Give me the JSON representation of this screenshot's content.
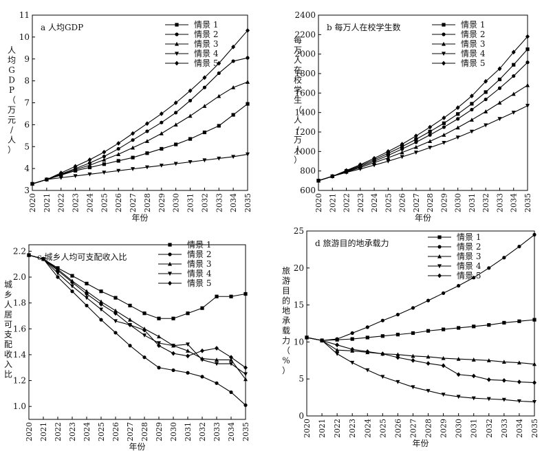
{
  "chart_data": [
    {
      "type": "line",
      "panel_label": "a  人均GDP",
      "ylabel": "人均GDP（万元/人）",
      "xlabel": "年份",
      "x": [
        2020,
        2021,
        2022,
        2023,
        2024,
        2025,
        2026,
        2027,
        2028,
        2029,
        2030,
        2031,
        2032,
        2033,
        2034,
        2035
      ],
      "xlim": [
        2020,
        2035
      ],
      "ylim": [
        3,
        11
      ],
      "yticks": [
        3,
        4,
        5,
        6,
        7,
        8,
        9,
        10,
        11
      ],
      "legend_position": "top-right",
      "series": [
        {
          "name": "情景 1",
          "marker": "square",
          "values": [
            3.3,
            3.5,
            3.7,
            3.9,
            4.05,
            4.2,
            4.35,
            4.5,
            4.7,
            4.9,
            5.1,
            5.35,
            5.65,
            5.95,
            6.45,
            6.95
          ]
        },
        {
          "name": "情景 2",
          "marker": "circle",
          "values": [
            3.3,
            3.5,
            3.75,
            4.0,
            4.25,
            4.55,
            4.9,
            5.3,
            5.7,
            6.1,
            6.55,
            7.1,
            7.7,
            8.35,
            8.9,
            9.05
          ]
        },
        {
          "name": "情景 3",
          "marker": "triangle",
          "values": [
            3.3,
            3.5,
            3.72,
            3.95,
            4.15,
            4.4,
            4.65,
            4.95,
            5.25,
            5.6,
            6.0,
            6.4,
            6.85,
            7.3,
            7.7,
            7.95
          ]
        },
        {
          "name": "情景 4",
          "marker": "triangle-down",
          "values": [
            3.3,
            3.5,
            3.58,
            3.66,
            3.74,
            3.82,
            3.9,
            3.98,
            4.06,
            4.14,
            4.22,
            4.3,
            4.38,
            4.46,
            4.54,
            4.65
          ]
        },
        {
          "name": "情景 5",
          "marker": "diamond",
          "values": [
            3.3,
            3.5,
            3.8,
            4.1,
            4.4,
            4.75,
            5.15,
            5.6,
            6.05,
            6.5,
            7.0,
            7.55,
            8.15,
            8.8,
            9.55,
            10.3
          ]
        }
      ]
    },
    {
      "type": "line",
      "panel_label": "b  每万人在校学生数",
      "ylabel": "每万人在校学生（人/万人）",
      "xlabel": "年份",
      "x": [
        2020,
        2021,
        2022,
        2023,
        2024,
        2025,
        2026,
        2027,
        2028,
        2029,
        2030,
        2031,
        2032,
        2033,
        2034,
        2035
      ],
      "xlim": [
        2020,
        2035
      ],
      "ylim": [
        600,
        2400
      ],
      "yticks": [
        600,
        800,
        1000,
        1200,
        1400,
        1600,
        1800,
        2000,
        2200,
        2400
      ],
      "legend_position": "top-right",
      "series": [
        {
          "name": "情景 1",
          "marker": "square",
          "values": [
            700,
            745,
            800,
            855,
            915,
            980,
            1050,
            1125,
            1205,
            1290,
            1385,
            1490,
            1610,
            1740,
            1890,
            2050
          ]
        },
        {
          "name": "情景 2",
          "marker": "circle",
          "values": [
            700,
            745,
            795,
            845,
            900,
            960,
            1025,
            1095,
            1170,
            1250,
            1335,
            1430,
            1535,
            1650,
            1775,
            1915
          ]
        },
        {
          "name": "情景 3",
          "marker": "triangle",
          "values": [
            700,
            745,
            790,
            835,
            885,
            935,
            990,
            1045,
            1105,
            1170,
            1245,
            1325,
            1410,
            1500,
            1590,
            1680
          ]
        },
        {
          "name": "情景 4",
          "marker": "triangle-down",
          "values": [
            700,
            745,
            785,
            820,
            860,
            900,
            945,
            990,
            1040,
            1090,
            1145,
            1205,
            1270,
            1335,
            1400,
            1470
          ]
        },
        {
          "name": "情景 5",
          "marker": "diamond",
          "values": [
            700,
            745,
            805,
            865,
            930,
            1000,
            1075,
            1160,
            1250,
            1345,
            1450,
            1570,
            1720,
            1850,
            2020,
            2180
          ]
        }
      ]
    },
    {
      "type": "line",
      "panel_label": "c  城乡人均可支配收入比",
      "ylabel": "城乡人居可支配收入比",
      "xlabel": "年份",
      "x": [
        2020,
        2021,
        2022,
        2023,
        2024,
        2025,
        2026,
        2027,
        2028,
        2029,
        2030,
        2031,
        2032,
        2033,
        2034,
        2035
      ],
      "xlim": [
        2020,
        2035
      ],
      "ylim": [
        0.9,
        2.25
      ],
      "yticks": [
        1.0,
        1.2,
        1.4,
        1.6,
        1.8,
        2.0,
        2.2
      ],
      "legend_position": "top-right",
      "series": [
        {
          "name": "情景 1",
          "marker": "square",
          "values": [
            2.17,
            2.14,
            2.07,
            2.01,
            1.95,
            1.89,
            1.84,
            1.78,
            1.72,
            1.68,
            1.68,
            1.72,
            1.76,
            1.85,
            1.85,
            1.87
          ]
        },
        {
          "name": "情景 2",
          "marker": "circle",
          "values": [
            2.17,
            2.14,
            2.0,
            1.89,
            1.78,
            1.67,
            1.57,
            1.47,
            1.38,
            1.3,
            1.28,
            1.26,
            1.23,
            1.18,
            1.11,
            1.01
          ]
        },
        {
          "name": "情景 3",
          "marker": "triangle",
          "values": [
            2.17,
            2.14,
            2.06,
            1.97,
            1.89,
            1.81,
            1.74,
            1.67,
            1.6,
            1.54,
            1.47,
            1.43,
            1.37,
            1.36,
            1.36,
            1.21
          ]
        },
        {
          "name": "情景 4",
          "marker": "triangle-down",
          "values": [
            2.17,
            2.14,
            2.03,
            1.93,
            1.84,
            1.75,
            1.66,
            1.63,
            1.55,
            1.49,
            1.47,
            1.48,
            1.36,
            1.33,
            1.33,
            1.25
          ]
        },
        {
          "name": "情景 5",
          "marker": "diamond",
          "values": [
            2.17,
            2.14,
            2.05,
            1.96,
            1.87,
            1.79,
            1.72,
            1.63,
            1.59,
            1.47,
            1.41,
            1.39,
            1.43,
            1.45,
            1.38,
            1.3
          ]
        }
      ]
    },
    {
      "type": "line",
      "panel_label": "d  旅游目的地承载力",
      "ylabel": "旅游目的地承载力（%）",
      "xlabel": "年份",
      "x": [
        2020,
        2021,
        2022,
        2023,
        2024,
        2025,
        2026,
        2027,
        2028,
        2029,
        2030,
        2031,
        2032,
        2033,
        2034,
        2035
      ],
      "xlim": [
        2020,
        2035
      ],
      "ylim": [
        0,
        25
      ],
      "yticks": [
        0,
        5,
        10,
        15,
        20,
        25
      ],
      "legend_position": "top-right",
      "series": [
        {
          "name": "情景 1",
          "marker": "square",
          "values": [
            10.6,
            10.2,
            10.3,
            10.4,
            10.6,
            10.8,
            11.0,
            11.2,
            11.5,
            11.7,
            11.9,
            12.1,
            12.3,
            12.6,
            12.8,
            13.0
          ]
        },
        {
          "name": "情景 2",
          "marker": "circle",
          "values": [
            10.6,
            10.2,
            10.4,
            11.2,
            12.0,
            12.9,
            13.7,
            14.6,
            15.6,
            16.6,
            17.6,
            18.7,
            20.0,
            21.4,
            22.9,
            24.5
          ]
        },
        {
          "name": "情景 3",
          "marker": "triangle",
          "values": [
            10.6,
            10.2,
            8.9,
            8.8,
            8.6,
            8.4,
            8.3,
            8.1,
            8.0,
            7.8,
            7.7,
            7.6,
            7.5,
            7.3,
            7.2,
            7.0
          ]
        },
        {
          "name": "情景 4",
          "marker": "triangle-down",
          "values": [
            10.6,
            10.2,
            8.4,
            7.2,
            6.2,
            5.3,
            4.6,
            3.9,
            3.4,
            2.9,
            2.6,
            2.4,
            2.3,
            2.2,
            2.0,
            1.9
          ]
        },
        {
          "name": "情景 5",
          "marker": "diamond",
          "values": [
            10.6,
            10.2,
            9.6,
            9.0,
            8.7,
            8.4,
            7.9,
            7.5,
            7.1,
            6.8,
            5.6,
            5.4,
            4.9,
            4.8,
            4.6,
            4.5
          ]
        }
      ]
    }
  ]
}
